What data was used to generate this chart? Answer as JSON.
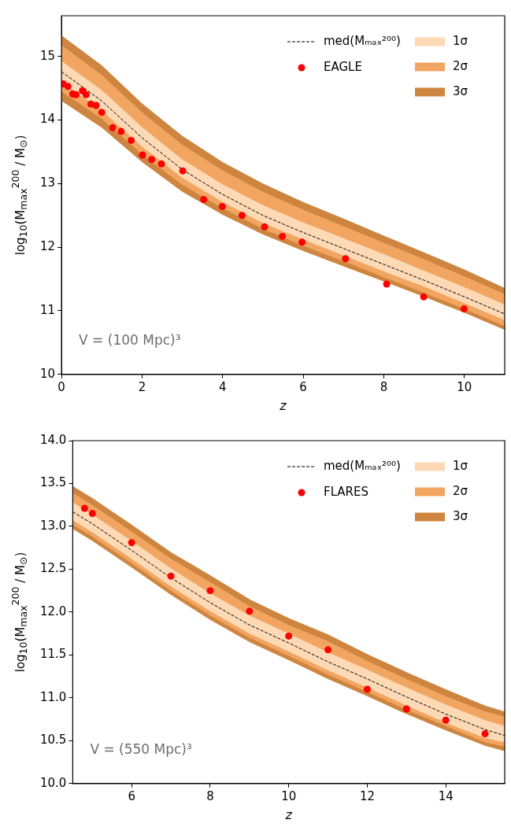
{
  "chart_data": [
    {
      "type": "line",
      "xlabel": "z",
      "ylabel": "log$_{10}$(M$_{max}$$^{200}$ / M$_{⊙}$)",
      "xlim": [
        0,
        11
      ],
      "xticks": [
        0,
        2,
        4,
        6,
        8,
        10
      ],
      "ylim": [
        10,
        15.64
      ],
      "yticks": [
        10,
        11,
        12,
        13,
        14,
        15
      ],
      "legend": "top right",
      "annotations": [
        "V = (100 Mpc)³"
      ],
      "x": [
        0,
        1,
        2,
        3,
        4,
        5,
        6,
        7,
        8,
        9,
        10,
        11
      ],
      "series": [
        {
          "name": "med(Mₘₐₓ²⁰⁰)",
          "type": "line",
          "color": "#000000",
          "line_style": "dashed",
          "marker": "none",
          "values": [
            14.76,
            14.3,
            13.72,
            13.22,
            12.83,
            12.5,
            12.23,
            11.98,
            11.73,
            11.48,
            11.22,
            10.95
          ]
        },
        {
          "name": "EAGLE",
          "type": "scatter",
          "color": "#ff0000",
          "marker": "circle",
          "x": [
            0.04,
            0.16,
            0.28,
            0.36,
            0.52,
            0.61,
            0.73,
            0.86,
            1.0,
            1.27,
            1.48,
            1.73,
            2.01,
            2.24,
            2.48,
            3.01,
            3.53,
            3.99,
            4.48,
            5.04,
            5.48,
            5.97,
            7.05,
            8.07,
            8.99,
            9.99
          ],
          "values": [
            14.57,
            14.53,
            14.41,
            14.4,
            14.46,
            14.4,
            14.25,
            14.23,
            14.12,
            13.88,
            13.82,
            13.68,
            13.45,
            13.38,
            13.31,
            13.2,
            12.75,
            12.64,
            12.5,
            12.32,
            12.17,
            12.08,
            11.82,
            11.42,
            11.22,
            11.03
          ]
        },
        {
          "name": "1σ",
          "type": "line",
          "color": "#fdd9b5",
          "values": [
            null,
            null,
            null,
            null,
            null,
            null,
            null,
            null,
            null,
            null,
            null,
            null
          ],
          "upper": [
            14.93,
            14.47,
            13.89,
            13.38,
            12.99,
            12.66,
            12.39,
            12.14,
            11.89,
            11.63,
            11.37,
            11.1
          ],
          "lower": [
            14.6,
            14.15,
            13.58,
            13.09,
            12.71,
            12.38,
            12.12,
            11.87,
            11.62,
            11.38,
            11.12,
            10.85
          ]
        },
        {
          "name": "2σ",
          "type": "line",
          "color": "#f2a560",
          "values": [
            null,
            null,
            null,
            null,
            null,
            null,
            null,
            null,
            null,
            null,
            null,
            null
          ],
          "upper": [
            15.18,
            14.71,
            14.12,
            13.61,
            13.21,
            12.87,
            12.59,
            12.33,
            12.07,
            11.81,
            11.54,
            11.26
          ],
          "lower": [
            14.45,
            14.02,
            13.46,
            12.98,
            12.61,
            12.29,
            12.02,
            11.78,
            11.53,
            11.28,
            11.03,
            10.76
          ]
        },
        {
          "name": "3σ",
          "type": "line",
          "color": "#cd853f",
          "values": [
            null,
            null,
            null,
            null,
            null,
            null,
            null,
            null,
            null,
            null,
            null,
            null
          ],
          "upper": [
            15.33,
            14.86,
            14.26,
            13.75,
            13.34,
            13.0,
            12.71,
            12.45,
            12.18,
            11.92,
            11.65,
            11.36
          ],
          "lower": [
            14.3,
            13.88,
            13.34,
            12.87,
            12.51,
            12.2,
            11.94,
            11.7,
            11.46,
            11.22,
            10.97,
            10.7
          ]
        }
      ]
    },
    {
      "type": "line",
      "xlabel": "z",
      "ylabel": "log$_{10}$(M$_{max}$$^{200}$ / M$_{⊙}$)",
      "xlim": [
        4.5,
        15.5
      ],
      "xticks": [
        6,
        8,
        10,
        12,
        14
      ],
      "ylim": [
        10,
        14
      ],
      "yticks": [
        {
          "value": 10,
          "label": "10.0"
        },
        10.5,
        {
          "value": 11,
          "label": "11.0"
        },
        11.5,
        {
          "value": 12,
          "label": "12.0"
        },
        12.5,
        {
          "value": 13,
          "label": "13.0"
        },
        13.5,
        {
          "value": 14,
          "label": "14.0"
        }
      ],
      "legend": "top right",
      "annotations": [
        "V = (550 Mpc)³"
      ],
      "x": [
        4.5,
        5,
        6,
        7,
        8,
        9,
        10,
        11,
        12,
        13,
        14,
        15,
        15.5
      ],
      "series": [
        {
          "name": "med(Mₘₐₓ²⁰⁰)",
          "type": "line",
          "color": "#000000",
          "line_style": "dashed",
          "marker": "none",
          "values": [
            13.17,
            13.03,
            12.72,
            12.4,
            12.11,
            11.85,
            11.64,
            11.42,
            11.22,
            11.01,
            10.81,
            10.63,
            10.56
          ]
        },
        {
          "name": "FLARES",
          "type": "scatter",
          "color": "#ff0000",
          "marker": "circle",
          "x": [
            4.8,
            5.0,
            6.0,
            7.0,
            8.0,
            9.0,
            10.0,
            11.0,
            12.0,
            13.0,
            14.0,
            15.0
          ],
          "values": [
            13.21,
            13.15,
            12.81,
            12.42,
            12.25,
            12.01,
            11.72,
            11.56,
            11.1,
            10.87,
            10.74,
            10.58
          ]
        },
        {
          "name": "1σ",
          "type": "line",
          "color": "#fdd9b5",
          "values": [
            null,
            null,
            null,
            null,
            null,
            null,
            null,
            null,
            null,
            null,
            null,
            null,
            null
          ],
          "upper": [
            13.28,
            13.14,
            12.83,
            12.51,
            12.22,
            11.96,
            11.75,
            11.53,
            11.33,
            11.12,
            10.92,
            10.74,
            10.67
          ],
          "lower": [
            13.07,
            12.93,
            12.62,
            12.3,
            12.01,
            11.75,
            11.54,
            11.32,
            11.12,
            10.91,
            10.71,
            10.53,
            10.48
          ]
        },
        {
          "name": "2σ",
          "type": "line",
          "color": "#f2a560",
          "values": [
            null,
            null,
            null,
            null,
            null,
            null,
            null,
            null,
            null,
            null,
            null,
            null,
            null
          ],
          "upper": [
            13.39,
            13.25,
            12.94,
            12.62,
            12.35,
            12.07,
            11.85,
            11.66,
            11.43,
            11.22,
            11.02,
            10.84,
            10.78
          ],
          "lower": [
            13.02,
            12.88,
            12.57,
            12.25,
            11.96,
            11.7,
            11.49,
            11.27,
            11.07,
            10.86,
            10.67,
            10.48,
            10.43
          ]
        },
        {
          "name": "3σ",
          "type": "line",
          "color": "#cd853f",
          "values": [
            null,
            null,
            null,
            null,
            null,
            null,
            null,
            null,
            null,
            null,
            null,
            null,
            null
          ],
          "upper": [
            13.47,
            13.33,
            13.02,
            12.7,
            12.43,
            12.15,
            11.93,
            11.74,
            11.51,
            11.3,
            11.1,
            10.91,
            10.84
          ],
          "lower": [
            12.97,
            12.83,
            12.52,
            12.2,
            11.91,
            11.65,
            11.44,
            11.22,
            11.02,
            10.81,
            10.62,
            10.44,
            10.38
          ]
        }
      ]
    }
  ]
}
